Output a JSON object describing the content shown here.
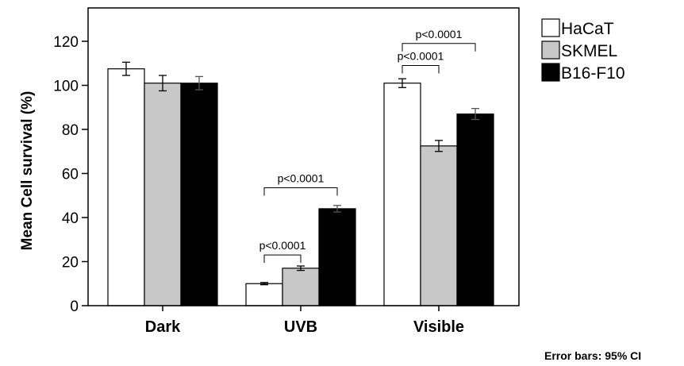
{
  "chart_data": {
    "type": "bar",
    "categories": [
      "Dark",
      "UVB",
      "Visible"
    ],
    "series": [
      {
        "name": "HaCaT",
        "color": "#ffffff",
        "values": [
          107.5,
          10,
          101
        ],
        "error": [
          3,
          0.5,
          2
        ]
      },
      {
        "name": "SKMEL",
        "color": "#c8c8c8",
        "values": [
          101,
          17,
          72.5
        ],
        "error": [
          3.5,
          1,
          2.5
        ]
      },
      {
        "name": "B16-F10",
        "color": "#000000",
        "values": [
          101,
          44,
          87
        ],
        "error": [
          3,
          1.5,
          2.5
        ]
      }
    ],
    "ylabel": "Mean Cell survival (%)",
    "xlabel": "",
    "ylim": [
      0,
      130
    ],
    "yticks": [
      0,
      20,
      40,
      60,
      80,
      100,
      120
    ],
    "grid": false,
    "legend": "top-right",
    "annotations": [
      {
        "category": "UVB",
        "from": 0,
        "to": 1,
        "text": "p<0.0001"
      },
      {
        "category": "UVB",
        "from": 0,
        "to": 2,
        "text": "p<0.0001"
      },
      {
        "category": "Visible",
        "from": 0,
        "to": 1,
        "text": "p<0.0001"
      },
      {
        "category": "Visible",
        "from": 0,
        "to": 2,
        "text": "p<0.0001"
      }
    ],
    "footnote": "Error bars: 95% CI"
  }
}
